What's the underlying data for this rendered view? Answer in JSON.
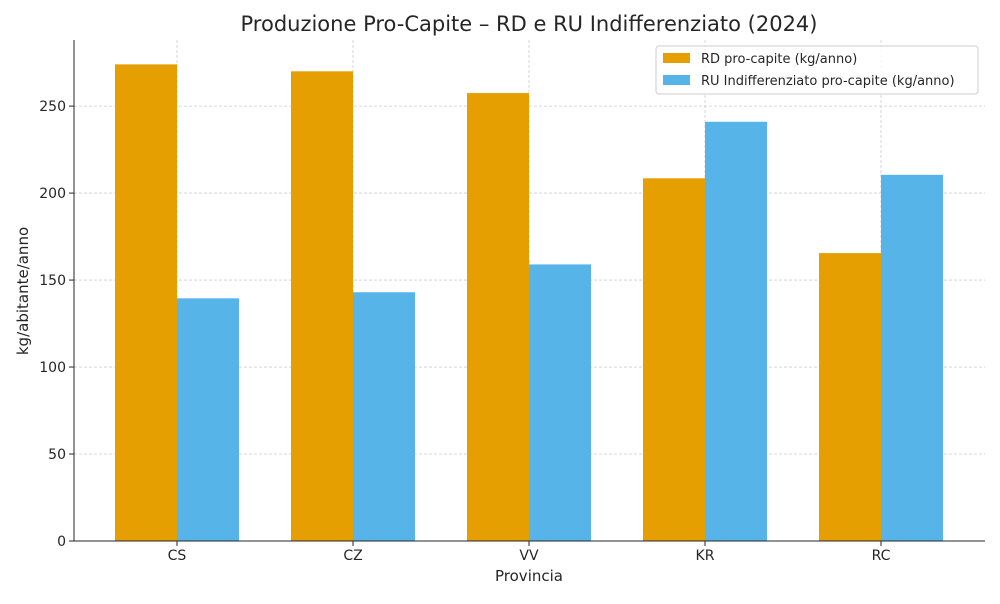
{
  "chart_data": {
    "type": "bar",
    "title": "Produzione Pro-Capite – RD e RU Indifferenziato (2024)",
    "xlabel": "Provincia",
    "ylabel": "kg/abitante/anno",
    "categories": [
      "CS",
      "CZ",
      "VV",
      "KR",
      "RC"
    ],
    "series": [
      {
        "name": "RD pro-capite (kg/anno)",
        "color": "#E69F00",
        "values": [
          274,
          270,
          257.5,
          208.5,
          165.5
        ]
      },
      {
        "name": "RU Indifferenziato pro-capite (kg/anno)",
        "color": "#56B4E9",
        "values": [
          139.5,
          143,
          159,
          241,
          210.5
        ]
      }
    ],
    "ylim": [
      0,
      288
    ],
    "yticks": [
      0,
      50,
      100,
      150,
      200,
      250
    ],
    "grid": true,
    "legend": "top-right"
  }
}
